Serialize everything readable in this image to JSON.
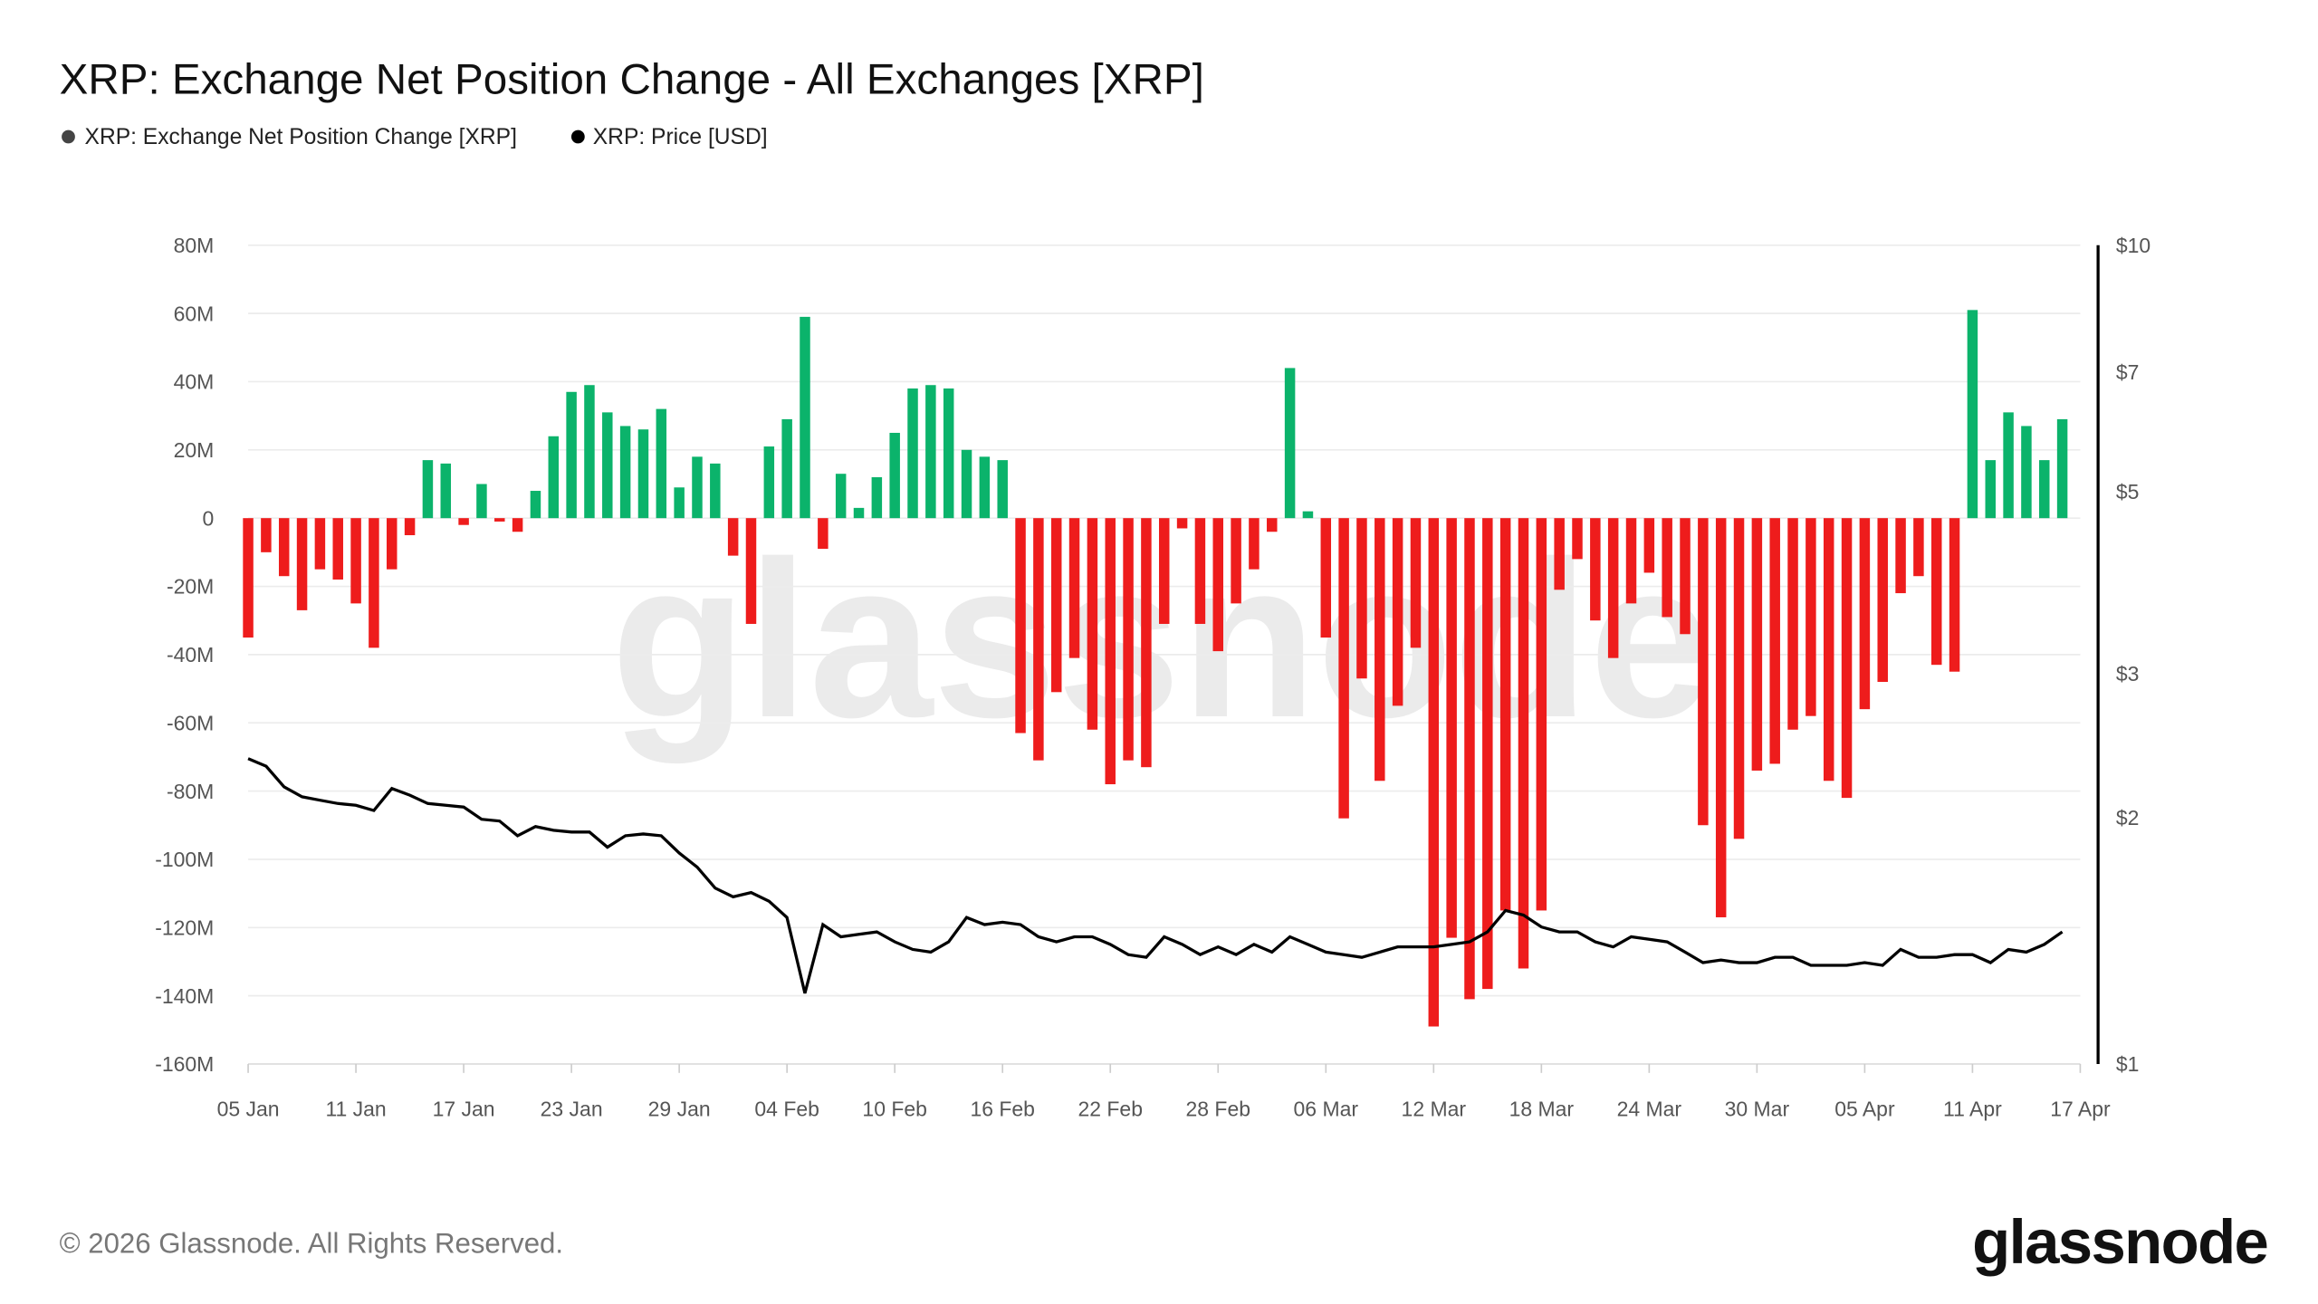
{
  "title": "XRP: Exchange Net Position Change - All Exchanges [XRP]",
  "legend": [
    {
      "label": "XRP: Exchange Net Position Change [XRP]",
      "color": "#444444"
    },
    {
      "label": "XRP: Price [USD]",
      "color": "#000000"
    }
  ],
  "footer": {
    "copyright": "© 2026 Glassnode. All Rights Reserved.",
    "logo": "glassnode"
  },
  "watermark": "glassnode",
  "colors": {
    "positive": "#0bb36b",
    "negative": "#ee1c1c",
    "price": "#000000"
  },
  "chart_data": {
    "type": "bar+line",
    "title": "XRP: Exchange Net Position Change - All Exchanges [XRP]",
    "left_axis": {
      "ticks": [
        "80M",
        "60M",
        "40M",
        "20M",
        "0",
        "-20M",
        "-40M",
        "-60M",
        "-80M",
        "-100M",
        "-120M",
        "-140M",
        "-160M"
      ],
      "ylim": [
        -160,
        80
      ],
      "unit": "M XRP"
    },
    "right_axis": {
      "scale": "log",
      "ticks": [
        "$10",
        "$7",
        "$5",
        "$3",
        "$2",
        "$1"
      ],
      "tick_values": [
        10,
        7,
        5,
        3,
        2,
        1
      ],
      "ylim": [
        1,
        10
      ]
    },
    "x_ticks": [
      "05 Jan",
      "11 Jan",
      "17 Jan",
      "23 Jan",
      "29 Jan",
      "04 Feb",
      "10 Feb",
      "16 Feb",
      "22 Feb",
      "28 Feb",
      "06 Mar",
      "12 Mar",
      "18 Mar",
      "24 Mar",
      "30 Mar",
      "05 Apr",
      "11 Apr",
      "17 Apr"
    ],
    "grid": true,
    "legend_position": "top-left",
    "dates": [
      "05 Jan",
      "06 Jan",
      "07 Jan",
      "08 Jan",
      "09 Jan",
      "10 Jan",
      "11 Jan",
      "12 Jan",
      "13 Jan",
      "14 Jan",
      "15 Jan",
      "16 Jan",
      "17 Jan",
      "18 Jan",
      "19 Jan",
      "20 Jan",
      "21 Jan",
      "22 Jan",
      "23 Jan",
      "24 Jan",
      "25 Jan",
      "26 Jan",
      "27 Jan",
      "28 Jan",
      "29 Jan",
      "30 Jan",
      "31 Jan",
      "01 Feb",
      "02 Feb",
      "03 Feb",
      "04 Feb",
      "05 Feb",
      "06 Feb",
      "07 Feb",
      "08 Feb",
      "09 Feb",
      "10 Feb",
      "11 Feb",
      "12 Feb",
      "13 Feb",
      "14 Feb",
      "15 Feb",
      "16 Feb",
      "17 Feb",
      "18 Feb",
      "19 Feb",
      "20 Feb",
      "21 Feb",
      "22 Feb",
      "23 Feb",
      "24 Feb",
      "25 Feb",
      "26 Feb",
      "27 Feb",
      "28 Feb",
      "01 Mar",
      "02 Mar",
      "03 Mar",
      "04 Mar",
      "05 Mar",
      "06 Mar",
      "07 Mar",
      "08 Mar",
      "09 Mar",
      "10 Mar",
      "11 Mar",
      "12 Mar",
      "13 Mar",
      "14 Mar",
      "15 Mar",
      "16 Mar",
      "17 Mar",
      "18 Mar",
      "19 Mar",
      "20 Mar",
      "21 Mar",
      "22 Mar",
      "23 Mar",
      "24 Mar",
      "25 Mar",
      "26 Mar",
      "27 Mar",
      "28 Mar",
      "29 Mar",
      "30 Mar",
      "31 Mar",
      "01 Apr",
      "02 Apr",
      "03 Apr",
      "04 Apr",
      "05 Apr",
      "06 Apr",
      "07 Apr",
      "08 Apr",
      "09 Apr",
      "10 Apr",
      "11 Apr",
      "12 Apr",
      "13 Apr",
      "14 Apr",
      "15 Apr",
      "16 Apr"
    ],
    "series": [
      {
        "name": "XRP: Exchange Net Position Change [XRP]",
        "unit": "M",
        "type": "bar",
        "values": [
          -35,
          -10,
          -17,
          -27,
          -15,
          -18,
          -25,
          -38,
          -15,
          -5,
          17,
          16,
          -2,
          10,
          -1,
          -4,
          8,
          24,
          37,
          39,
          31,
          27,
          26,
          32,
          9,
          18,
          16,
          -11,
          -31,
          21,
          29,
          59,
          -9,
          13,
          3,
          12,
          25,
          38,
          39,
          38,
          20,
          18,
          17,
          -63,
          -71,
          -51,
          -41,
          -62,
          -78,
          -71,
          -73,
          -31,
          -3,
          -31,
          -39,
          -25,
          -15,
          -4,
          44,
          2,
          -35,
          -88,
          -47,
          -77,
          -55,
          -38,
          -149,
          -123,
          -141,
          -138,
          -115,
          -132,
          -115,
          -21,
          -12,
          -30,
          -41,
          -25,
          -16,
          -29,
          -34,
          -90,
          -117,
          -94,
          -74,
          -72,
          -62,
          -58,
          -77,
          -82,
          -56,
          -48,
          -22,
          -17,
          -43,
          -45,
          61,
          17,
          31,
          27,
          17,
          29
        ]
      },
      {
        "name": "XRP: Price [USD]",
        "unit": "USD",
        "type": "line",
        "values": [
          2.36,
          2.31,
          2.18,
          2.12,
          2.1,
          2.08,
          2.07,
          2.04,
          2.17,
          2.13,
          2.08,
          2.07,
          2.06,
          1.99,
          1.98,
          1.9,
          1.95,
          1.93,
          1.92,
          1.92,
          1.84,
          1.9,
          1.91,
          1.9,
          1.81,
          1.74,
          1.64,
          1.6,
          1.62,
          1.58,
          1.51,
          1.22,
          1.48,
          1.43,
          1.44,
          1.45,
          1.41,
          1.38,
          1.37,
          1.41,
          1.51,
          1.48,
          1.49,
          1.48,
          1.43,
          1.41,
          1.43,
          1.43,
          1.4,
          1.36,
          1.35,
          1.43,
          1.4,
          1.36,
          1.39,
          1.36,
          1.4,
          1.37,
          1.43,
          1.4,
          1.37,
          1.36,
          1.35,
          1.37,
          1.39,
          1.39,
          1.39,
          1.4,
          1.41,
          1.45,
          1.54,
          1.52,
          1.47,
          1.45,
          1.45,
          1.41,
          1.39,
          1.43,
          1.42,
          1.41,
          1.37,
          1.33,
          1.34,
          1.33,
          1.33,
          1.35,
          1.35,
          1.32,
          1.32,
          1.32,
          1.33,
          1.32,
          1.38,
          1.35,
          1.35,
          1.36,
          1.36,
          1.33,
          1.38,
          1.37,
          1.4,
          1.45
        ]
      }
    ]
  }
}
